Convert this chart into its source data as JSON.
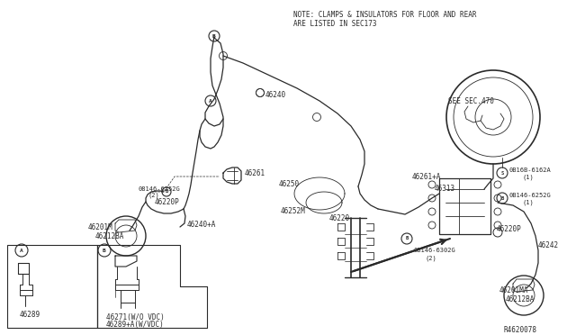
{
  "bg_color": "#ffffff",
  "line_color": "#2a2a2a",
  "fig_width": 6.4,
  "fig_height": 3.72,
  "dpi": 100,
  "note_line1": "NOTE: CLAMPS & INSULATORS FOR FLOOR AND REAR",
  "note_line2": "ARE LISTED IN SEC173",
  "see_sec": "SEE SEC.470",
  "ref_code": "R4620078"
}
